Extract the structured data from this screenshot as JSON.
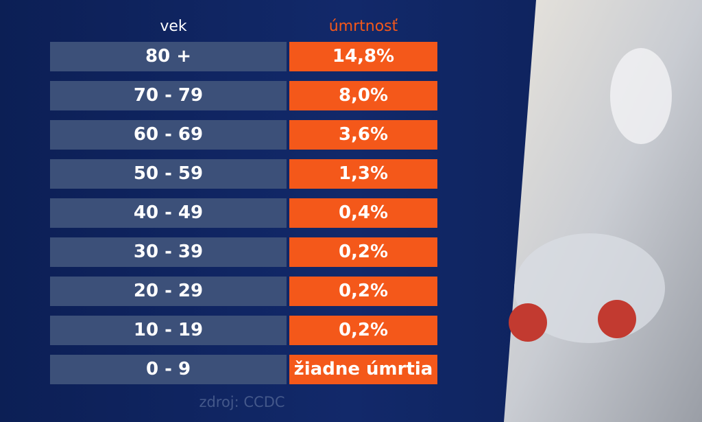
{
  "table": {
    "header": [
      "vek",
      "úmrtnosť"
    ],
    "rows": [
      [
        "80 +",
        "14,8%"
      ],
      [
        "70 - 79",
        "8,0%"
      ],
      [
        "60 - 69",
        "3,6%"
      ],
      [
        "50 - 59",
        "1,3%"
      ],
      [
        "40 - 49",
        "0,4%"
      ],
      [
        "30 - 39",
        "0,2%"
      ],
      [
        "20 - 29",
        "0,2%"
      ],
      [
        "10 - 19",
        "0,2%"
      ],
      [
        "0 - 9",
        "žiadne úmrtia"
      ]
    ]
  },
  "source": "zdroj: CCDC"
}
